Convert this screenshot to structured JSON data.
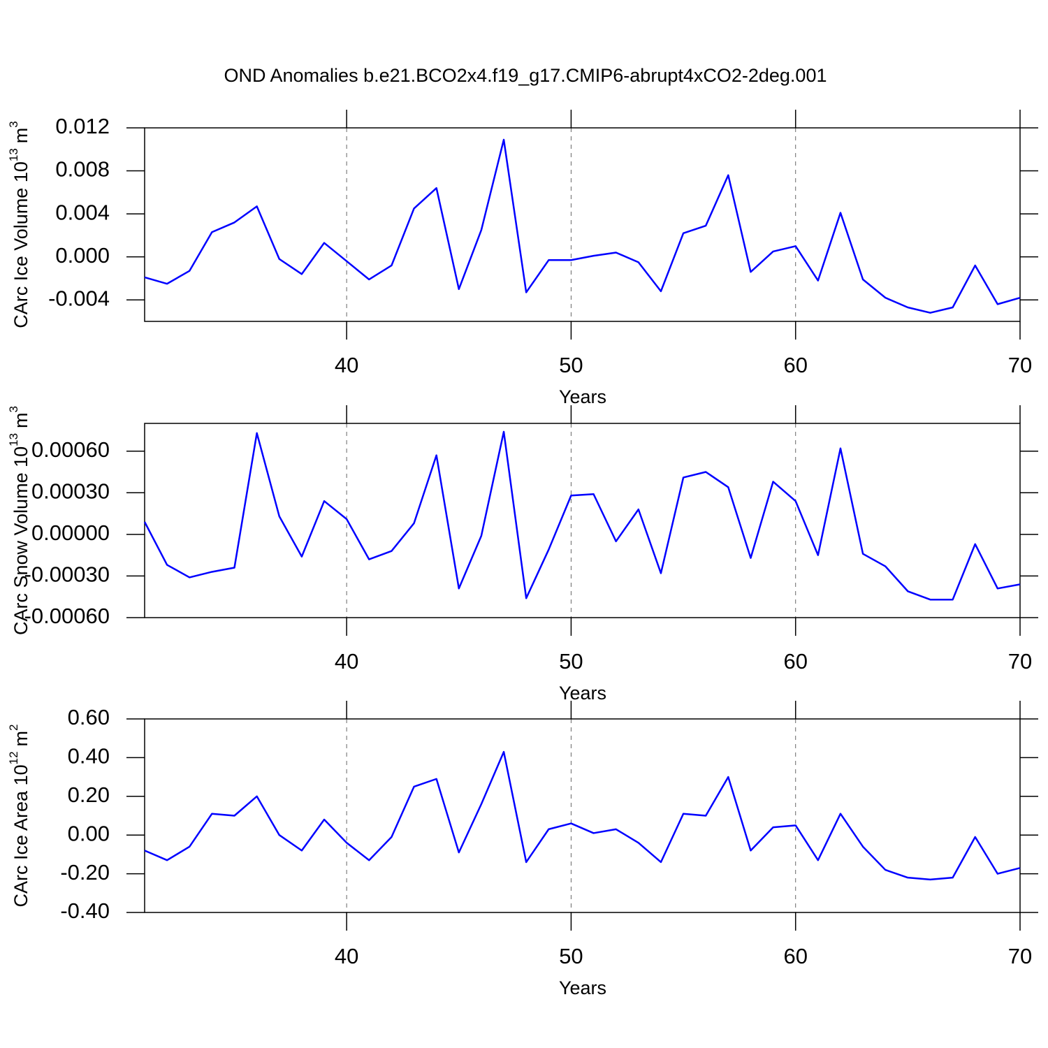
{
  "chart_data": [
    {
      "type": "line",
      "title": "OND Anomalies b.e21.BCO2x4.f19_g17.CMIP6-abrupt4xCO2-2deg.001",
      "xlabel": "Years",
      "ylabel": [
        "CArc Ice Volume 10",
        "13",
        "m",
        "3"
      ],
      "x": [
        31,
        32,
        33,
        34,
        35,
        36,
        37,
        38,
        39,
        40,
        41,
        42,
        43,
        44,
        45,
        46,
        47,
        48,
        49,
        50,
        51,
        52,
        53,
        54,
        55,
        56,
        57,
        58,
        59,
        60,
        61,
        62,
        63,
        64,
        65,
        66,
        67,
        68,
        69,
        70
      ],
      "series": [
        {
          "color": "#0000ff",
          "values": [
            -0.0019,
            -0.0025,
            -0.0013,
            0.0023,
            0.0032,
            0.0047,
            -0.0002,
            -0.0016,
            0.0013,
            -0.0004,
            -0.0021,
            -0.0008,
            0.0045,
            0.0064,
            -0.003,
            0.0025,
            0.0109,
            -0.0033,
            -0.0003,
            -0.0003,
            0.0001,
            0.0004,
            -0.0005,
            -0.0032,
            0.0022,
            0.0029,
            0.0076,
            -0.0014,
            0.0005,
            0.001,
            -0.0022,
            0.0041,
            -0.0021,
            -0.0038,
            -0.0047,
            -0.0052,
            -0.0047,
            -0.0008,
            -0.0044,
            -0.0038
          ]
        }
      ],
      "xlim": [
        31,
        70
      ],
      "xticks": [
        40,
        50,
        60,
        70
      ],
      "ylim": [
        -0.006,
        0.012
      ],
      "yticks": [
        0.012,
        0.008,
        0.004,
        {
          "value": 0,
          "label": "0.000"
        },
        -0.004
      ],
      "grid": true
    },
    {
      "type": "line",
      "xlabel": "Years",
      "ylabel": [
        "CArc Snow Volume 10",
        "13",
        "m",
        "3"
      ],
      "x": [
        31,
        32,
        33,
        34,
        35,
        36,
        37,
        38,
        39,
        40,
        41,
        42,
        43,
        44,
        45,
        46,
        47,
        48,
        49,
        50,
        51,
        52,
        53,
        54,
        55,
        56,
        57,
        58,
        59,
        60,
        61,
        62,
        63,
        64,
        65,
        66,
        67,
        68,
        69,
        70
      ],
      "series": [
        {
          "color": "#0000ff",
          "values": [
            9e-05,
            -0.00022,
            -0.00031,
            -0.00027,
            -0.00024,
            0.00073,
            0.00013,
            -0.00016,
            0.00024,
            0.00011,
            -0.00018,
            -0.00012,
            8e-05,
            0.00057,
            -0.00039,
            -1e-05,
            0.00074,
            -0.00046,
            -0.00011,
            0.00028,
            0.00029,
            -5e-05,
            0.00018,
            -0.00028,
            0.00041,
            0.00045,
            0.00034,
            -0.00017,
            0.00038,
            0.00024,
            -0.00015,
            0.00062,
            -0.00014,
            -0.00023,
            -0.00041,
            -0.00047,
            -0.00047,
            -7e-05,
            -0.00039,
            -0.00036
          ]
        }
      ],
      "xlim": [
        31,
        70
      ],
      "xticks": [
        40,
        50,
        60,
        70
      ],
      "ylim": [
        -0.0006,
        0.0008
      ],
      "yticks": [
        {
          "value": 0.0006,
          "label": "0.00060"
        },
        {
          "value": 0.0003,
          "label": "0.00030"
        },
        {
          "value": 0,
          "label": "0.00000"
        },
        {
          "value": -0.0003,
          "label": "-0.00030"
        },
        {
          "value": -0.0006,
          "label": "-0.00060"
        }
      ],
      "grid": true
    },
    {
      "type": "line",
      "xlabel": "Years",
      "ylabel": [
        "CArc Ice Area 10",
        "12",
        "m",
        "2"
      ],
      "x": [
        31,
        32,
        33,
        34,
        35,
        36,
        37,
        38,
        39,
        40,
        41,
        42,
        43,
        44,
        45,
        46,
        47,
        48,
        49,
        50,
        51,
        52,
        53,
        54,
        55,
        56,
        57,
        58,
        59,
        60,
        61,
        62,
        63,
        64,
        65,
        66,
        67,
        68,
        69,
        70
      ],
      "series": [
        {
          "color": "#0000ff",
          "values": [
            -0.08,
            -0.13,
            -0.06,
            0.11,
            0.1,
            0.2,
            0.0,
            -0.08,
            0.08,
            -0.04,
            -0.13,
            -0.01,
            0.25,
            0.29,
            -0.09,
            0.16,
            0.43,
            -0.14,
            0.03,
            0.06,
            0.01,
            0.03,
            -0.04,
            -0.14,
            0.11,
            0.1,
            0.3,
            -0.08,
            0.04,
            0.05,
            -0.13,
            0.11,
            -0.06,
            -0.18,
            -0.22,
            -0.23,
            -0.22,
            -0.01,
            -0.2,
            -0.17
          ]
        }
      ],
      "xlim": [
        31,
        70
      ],
      "xticks": [
        40,
        50,
        60,
        70
      ],
      "ylim": [
        -0.4,
        0.6
      ],
      "yticks": [
        {
          "value": 0.6,
          "label": "0.60"
        },
        {
          "value": 0.4,
          "label": "0.40"
        },
        {
          "value": 0.2,
          "label": "0.20"
        },
        {
          "value": 0,
          "label": "0.00"
        },
        {
          "value": -0.2,
          "label": "-0.20"
        },
        {
          "value": -0.4,
          "label": "-0.40"
        }
      ],
      "grid": true
    }
  ]
}
